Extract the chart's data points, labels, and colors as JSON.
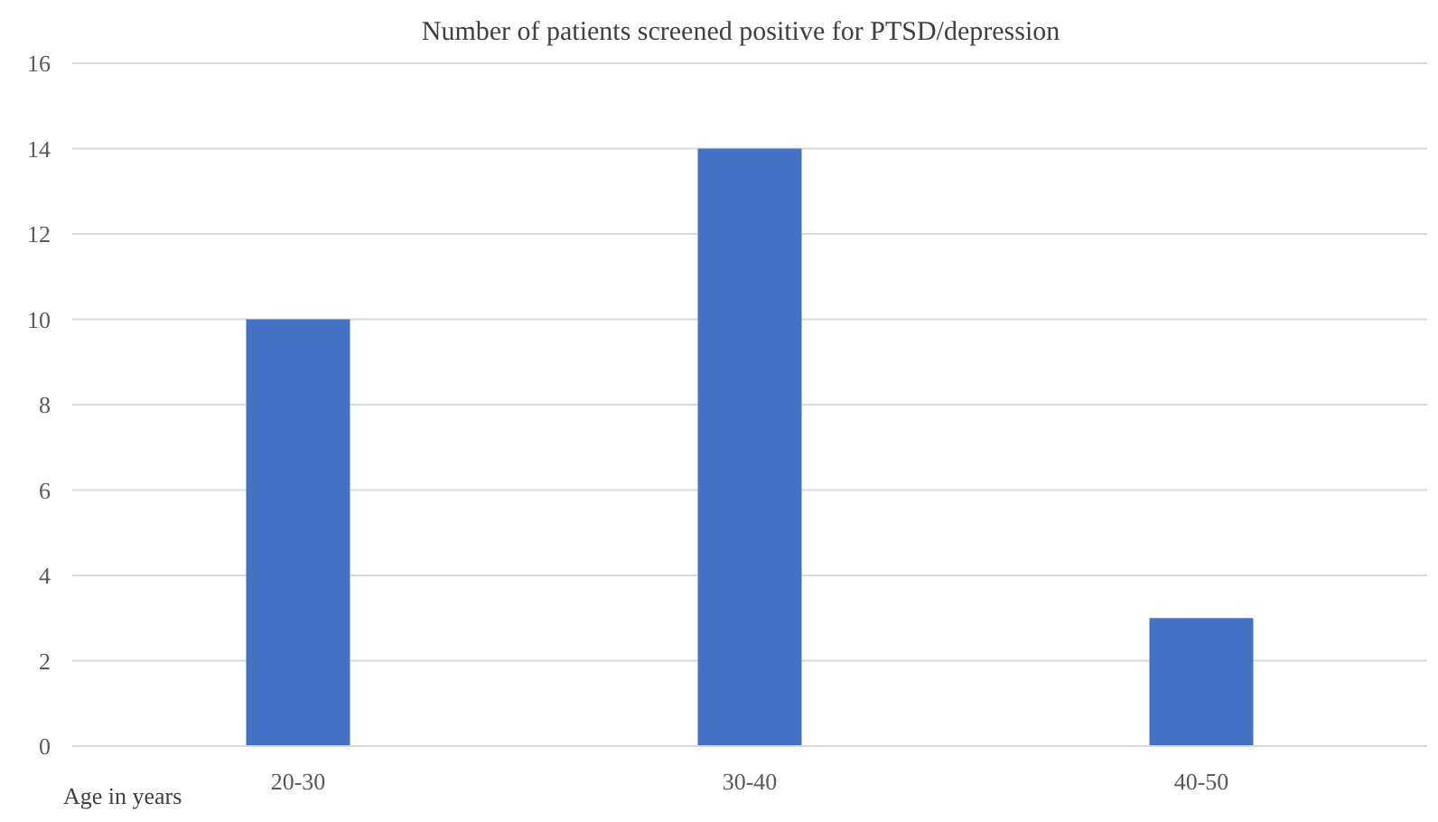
{
  "chart_data": {
    "type": "bar",
    "title": "Number of patients screened positive for PTSD/depression",
    "xlabel": "Age in years",
    "categories": [
      "20-30",
      "30-40",
      "40-50"
    ],
    "values": [
      10,
      14,
      3
    ],
    "color": "#4472c4",
    "ylim": [
      0,
      16
    ],
    "yticks": [
      0,
      2,
      4,
      6,
      8,
      10,
      12,
      14,
      16
    ],
    "grid": "y"
  }
}
